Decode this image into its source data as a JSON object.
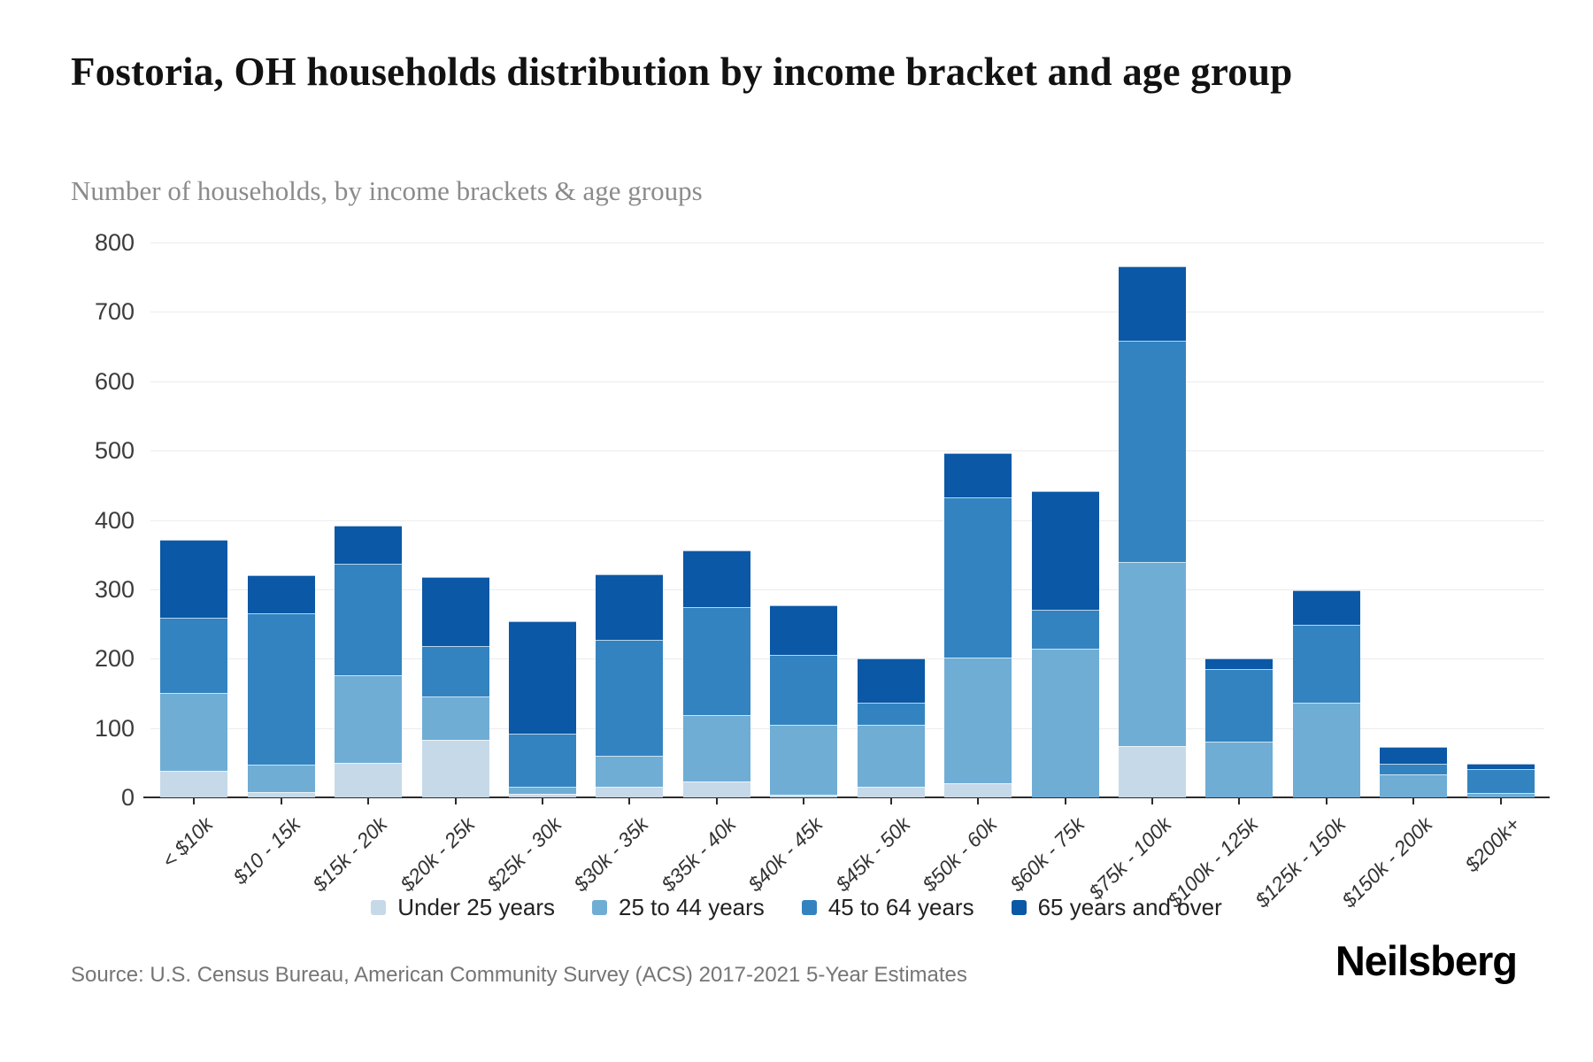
{
  "header": {
    "title": "Fostoria, OH households distribution by income bracket and age group",
    "subtitle": "Number of households, by income brackets & age groups"
  },
  "footer": {
    "source": "Source: U.S. Census Bureau, American Community Survey (ACS) 2017-2021 5-Year Estimates",
    "brand": "Neilsberg"
  },
  "chart_data": {
    "type": "bar",
    "stacked": true,
    "title": "Fostoria, OH households distribution by income bracket and age group",
    "ylabel": "Number of households",
    "xlabel": "",
    "ylim": [
      0,
      800
    ],
    "yticks": [
      0,
      100,
      200,
      300,
      400,
      500,
      600,
      700,
      800
    ],
    "grid": true,
    "legend_position": "bottom",
    "categories": [
      "< $10k",
      "$10 - 15k",
      "$15k - 20k",
      "$20k - 25k",
      "$25k - 30k",
      "$30k - 35k",
      "$35k - 40k",
      "$40k - 45k",
      "$45k - 50k",
      "$50k - 60k",
      "$60k - 75k",
      "$75k - 100k",
      "$100k - 125k",
      "$125k - 150k",
      "$150k - 200k",
      "$200k+"
    ],
    "series": [
      {
        "name": "Under 25 years",
        "color": "#c6d9e9",
        "values": [
          38,
          8,
          50,
          83,
          5,
          15,
          23,
          4,
          15,
          20,
          0,
          74,
          0,
          0,
          0,
          0
        ]
      },
      {
        "name": "25 to 44 years",
        "color": "#6fadd5",
        "values": [
          113,
          39,
          126,
          62,
          10,
          45,
          96,
          101,
          90,
          181,
          215,
          266,
          81,
          137,
          33,
          6
        ]
      },
      {
        "name": "45 to 64 years",
        "color": "#3383c0",
        "values": [
          108,
          218,
          161,
          73,
          77,
          167,
          155,
          101,
          32,
          231,
          55,
          318,
          104,
          112,
          16,
          35
        ]
      },
      {
        "name": "65 years and over",
        "color": "#0b58a6",
        "values": [
          112,
          55,
          55,
          100,
          162,
          95,
          82,
          71,
          63,
          64,
          171,
          107,
          15,
          50,
          24,
          8
        ]
      }
    ]
  }
}
